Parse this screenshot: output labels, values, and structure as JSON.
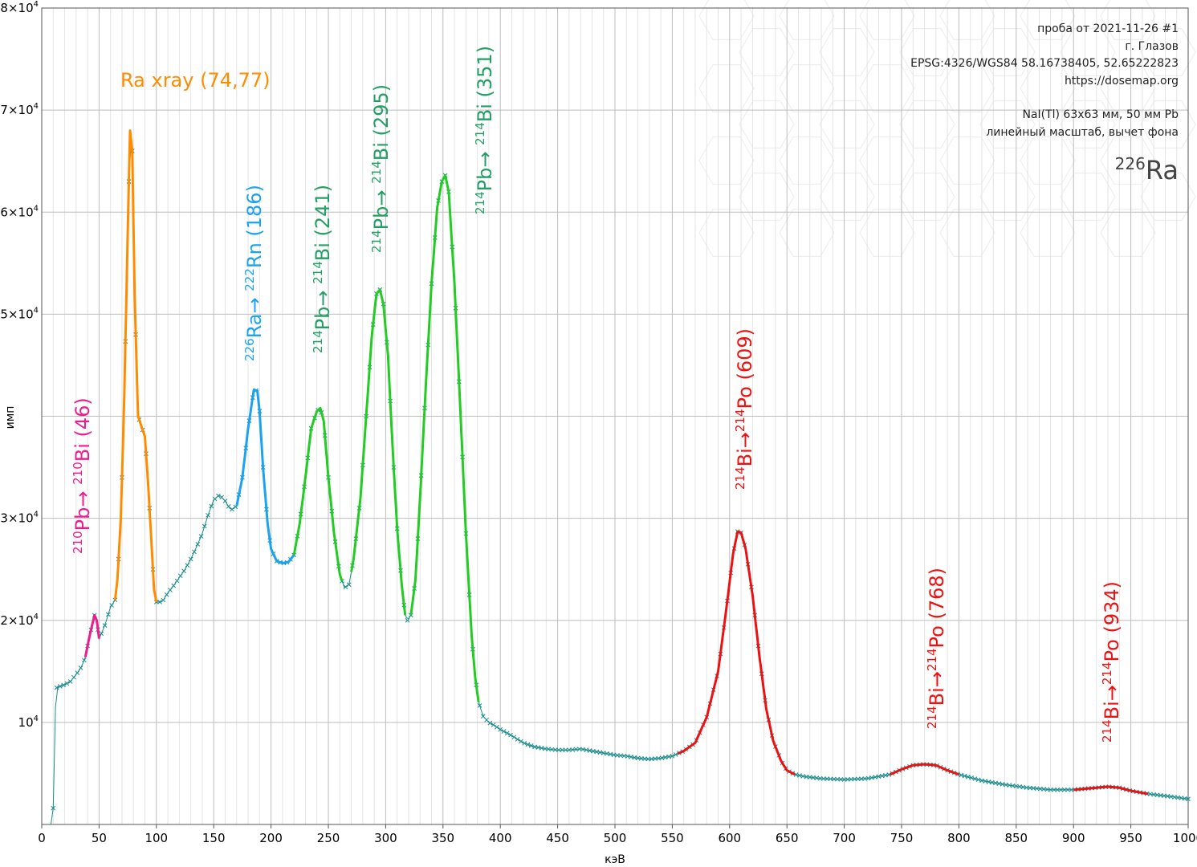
{
  "info": {
    "line1": "проба от 2021-11-26 #1",
    "line2": "г. Глазов",
    "line3": "EPSG:4326/WGS84  58.16738405, 52.65222823",
    "line4": "https://dosemap.org",
    "line5": "NaI(Tl) 63x63 мм, 50 мм Pb",
    "line6": "линейный масштаб, вычет фона",
    "isotope_mass": "226",
    "isotope_symbol": "Ra"
  },
  "colors": {
    "background_marker": "#1a8c8c",
    "pb210": "#ee1c8c",
    "ra_xray": "#ff8c00",
    "ra226": "#1aa3f0",
    "pb214": "#22cc22",
    "pb214_label": "#22a064",
    "bi214": "#ee1111",
    "grid_major": "#bdbdbd",
    "grid_minor": "#e4e4e4"
  },
  "annotations": [
    {
      "key": "pb210",
      "mass1": "210",
      "el1": "Pb",
      "arrow": "→ ",
      "mass2": "210",
      "el2": "Bi",
      "tail": " (46)",
      "color": "#ee1c8c"
    },
    {
      "key": "xray",
      "text": "Ra xray (74,77)",
      "color": "#ff8c00"
    },
    {
      "key": "ra186",
      "mass1": "226",
      "el1": "Ra",
      "arrow": "→ ",
      "mass2": "222",
      "el2": "Rn",
      "tail": " (186)",
      "color": "#1aa3f0"
    },
    {
      "key": "pb241",
      "mass1": "214",
      "el1": "Pb",
      "arrow": "→ ",
      "mass2": "214",
      "el2": "Bi",
      "tail": " (241)",
      "color": "#22a064"
    },
    {
      "key": "pb295",
      "mass1": "214",
      "el1": "Pb",
      "arrow": "→ ",
      "mass2": "214",
      "el2": "Bi",
      "tail": " (295)",
      "color": "#22a064"
    },
    {
      "key": "pb351",
      "mass1": "214",
      "el1": "Pb",
      "arrow": "→ ",
      "mass2": "214",
      "el2": "Bi",
      "tail": " (351)",
      "color": "#22a064"
    },
    {
      "key": "bi609",
      "mass1": "214",
      "el1": "Bi",
      "arrow": "→",
      "mass2": "214",
      "el2": "Po",
      "tail": " (609)",
      "color": "#ee1111"
    },
    {
      "key": "bi768",
      "mass1": "214",
      "el1": "Bi",
      "arrow": "→",
      "mass2": "214",
      "el2": "Po",
      "tail": " (768)",
      "color": "#ee1111"
    },
    {
      "key": "bi934",
      "mass1": "214",
      "el1": "Bi",
      "arrow": "→",
      "mass2": "214",
      "el2": "Po",
      "tail": " (934)",
      "color": "#ee1111"
    }
  ],
  "chart_data": {
    "type": "line",
    "xlabel": "кэВ",
    "ylabel": "имп",
    "xlim": [
      0,
      1000
    ],
    "ylim": [
      0,
      80000
    ],
    "grid": true,
    "x_ticks": [
      0,
      50,
      100,
      150,
      200,
      250,
      300,
      350,
      400,
      450,
      500,
      550,
      600,
      650,
      700,
      750,
      800,
      850,
      900,
      950,
      1000
    ],
    "x_tick_labels": [
      "0",
      "50",
      "100",
      "150",
      "200",
      "250",
      "300",
      "350",
      "400",
      "450",
      "500",
      "550",
      "600",
      "650",
      "700",
      "750",
      "800",
      "850",
      "900",
      "950",
      "1000"
    ],
    "y_ticks": [
      {
        "value": 10000,
        "mantissa": "10",
        "exp": "4"
      },
      {
        "value": 20000,
        "mantissa": "2×10",
        "exp": "4"
      },
      {
        "value": 30000,
        "mantissa": "3×10",
        "exp": "4"
      },
      {
        "value": 50000,
        "mantissa": "5×10",
        "exp": "4"
      },
      {
        "value": 60000,
        "mantissa": "6×10",
        "exp": "4"
      },
      {
        "value": 70000,
        "mantissa": "7×10",
        "exp": "4"
      },
      {
        "value": 80000,
        "mantissa": "8×10",
        "exp": "4"
      }
    ],
    "spectrum": [
      [
        8,
        0
      ],
      [
        10,
        1600
      ],
      [
        11,
        5000
      ],
      [
        12,
        11500
      ],
      [
        13,
        13400
      ],
      [
        15,
        13500
      ],
      [
        20,
        13700
      ],
      [
        25,
        14000
      ],
      [
        30,
        14700
      ],
      [
        35,
        15500
      ],
      [
        38,
        16400
      ],
      [
        42,
        18600
      ],
      [
        46,
        20500
      ],
      [
        48,
        20000
      ],
      [
        50,
        18200
      ],
      [
        52,
        18700
      ],
      [
        55,
        19500
      ],
      [
        60,
        21300
      ],
      [
        64,
        22000
      ],
      [
        66,
        24000
      ],
      [
        69,
        30000
      ],
      [
        72,
        42000
      ],
      [
        75,
        58000
      ],
      [
        77,
        68000
      ],
      [
        79,
        66000
      ],
      [
        81,
        52000
      ],
      [
        84,
        40000
      ],
      [
        87,
        39000
      ],
      [
        90,
        38000
      ],
      [
        93,
        33000
      ],
      [
        96,
        27000
      ],
      [
        98,
        23000
      ],
      [
        100,
        21800
      ],
      [
        105,
        21800
      ],
      [
        110,
        22700
      ],
      [
        115,
        23400
      ],
      [
        120,
        24200
      ],
      [
        125,
        25000
      ],
      [
        130,
        26000
      ],
      [
        135,
        27200
      ],
      [
        140,
        28500
      ],
      [
        145,
        30300
      ],
      [
        150,
        31800
      ],
      [
        155,
        32300
      ],
      [
        160,
        31700
      ],
      [
        165,
        30800
      ],
      [
        170,
        31200
      ],
      [
        175,
        34000
      ],
      [
        180,
        38800
      ],
      [
        185,
        42600
      ],
      [
        188,
        42500
      ],
      [
        190,
        40500
      ],
      [
        193,
        35000
      ],
      [
        197,
        29500
      ],
      [
        200,
        27000
      ],
      [
        205,
        25800
      ],
      [
        210,
        25600
      ],
      [
        215,
        25700
      ],
      [
        220,
        26400
      ],
      [
        225,
        29500
      ],
      [
        230,
        34000
      ],
      [
        235,
        38800
      ],
      [
        240,
        40500
      ],
      [
        243,
        40800
      ],
      [
        246,
        39500
      ],
      [
        250,
        34000
      ],
      [
        255,
        28500
      ],
      [
        260,
        24500
      ],
      [
        264,
        23200
      ],
      [
        268,
        23500
      ],
      [
        272,
        26000
      ],
      [
        278,
        32000
      ],
      [
        283,
        40000
      ],
      [
        288,
        48000
      ],
      [
        292,
        52000
      ],
      [
        295,
        52400
      ],
      [
        298,
        51000
      ],
      [
        302,
        46000
      ],
      [
        306,
        37000
      ],
      [
        310,
        29000
      ],
      [
        314,
        23500
      ],
      [
        317,
        20500
      ],
      [
        319,
        20000
      ],
      [
        322,
        20500
      ],
      [
        326,
        24000
      ],
      [
        330,
        32000
      ],
      [
        335,
        43000
      ],
      [
        340,
        53000
      ],
      [
        345,
        60500
      ],
      [
        349,
        63000
      ],
      [
        352,
        63600
      ],
      [
        355,
        62000
      ],
      [
        360,
        53000
      ],
      [
        365,
        41000
      ],
      [
        370,
        28500
      ],
      [
        375,
        18500
      ],
      [
        378,
        14500
      ],
      [
        381,
        12000
      ],
      [
        385,
        10600
      ],
      [
        390,
        10000
      ],
      [
        395,
        9700
      ],
      [
        400,
        9300
      ],
      [
        410,
        8700
      ],
      [
        420,
        8000
      ],
      [
        430,
        7600
      ],
      [
        440,
        7400
      ],
      [
        450,
        7300
      ],
      [
        460,
        7300
      ],
      [
        470,
        7400
      ],
      [
        480,
        7200
      ],
      [
        490,
        7000
      ],
      [
        500,
        6800
      ],
      [
        510,
        6700
      ],
      [
        520,
        6500
      ],
      [
        530,
        6400
      ],
      [
        540,
        6500
      ],
      [
        550,
        6700
      ],
      [
        560,
        7200
      ],
      [
        570,
        8000
      ],
      [
        580,
        10500
      ],
      [
        590,
        15000
      ],
      [
        597,
        21000
      ],
      [
        603,
        26500
      ],
      [
        607,
        28700
      ],
      [
        610,
        28600
      ],
      [
        614,
        27000
      ],
      [
        620,
        22500
      ],
      [
        626,
        16500
      ],
      [
        632,
        11300
      ],
      [
        638,
        8200
      ],
      [
        645,
        6200
      ],
      [
        650,
        5300
      ],
      [
        657,
        4900
      ],
      [
        665,
        4700
      ],
      [
        680,
        4500
      ],
      [
        700,
        4400
      ],
      [
        720,
        4500
      ],
      [
        740,
        4900
      ],
      [
        750,
        5400
      ],
      [
        760,
        5800
      ],
      [
        770,
        5900
      ],
      [
        780,
        5800
      ],
      [
        790,
        5300
      ],
      [
        800,
        4900
      ],
      [
        820,
        4300
      ],
      [
        840,
        3900
      ],
      [
        860,
        3600
      ],
      [
        880,
        3400
      ],
      [
        900,
        3400
      ],
      [
        910,
        3500
      ],
      [
        920,
        3600
      ],
      [
        930,
        3700
      ],
      [
        940,
        3600
      ],
      [
        950,
        3300
      ],
      [
        965,
        3000
      ],
      [
        980,
        2800
      ],
      [
        1000,
        2500
      ]
    ],
    "series": [
      {
        "name": "",
        "color": "#1a8c8c",
        "range": [
          8,
          1000
        ],
        "style": "markers"
      },
      {
        "name": "",
        "color": "#ee1c8c",
        "range": [
          38,
          50
        ]
      },
      {
        "name": "",
        "color": "#ff8c00",
        "range": [
          64,
          100
        ]
      },
      {
        "name": "",
        "color": "#1aa3f0",
        "range": [
          170,
          220
        ]
      },
      {
        "name": "",
        "color": "#22cc22",
        "range": [
          220,
          262
        ]
      },
      {
        "name": "",
        "color": "#22cc22",
        "range": [
          270,
          317
        ]
      },
      {
        "name": "",
        "color": "#22cc22",
        "range": [
          322,
          381
        ]
      },
      {
        "name": "",
        "color": "#ee1111",
        "range": [
          555,
          657
        ]
      },
      {
        "name": "",
        "color": "#ee1111",
        "range": [
          740,
          800
        ]
      },
      {
        "name": "",
        "color": "#ee1111",
        "range": [
          900,
          965
        ]
      }
    ]
  }
}
